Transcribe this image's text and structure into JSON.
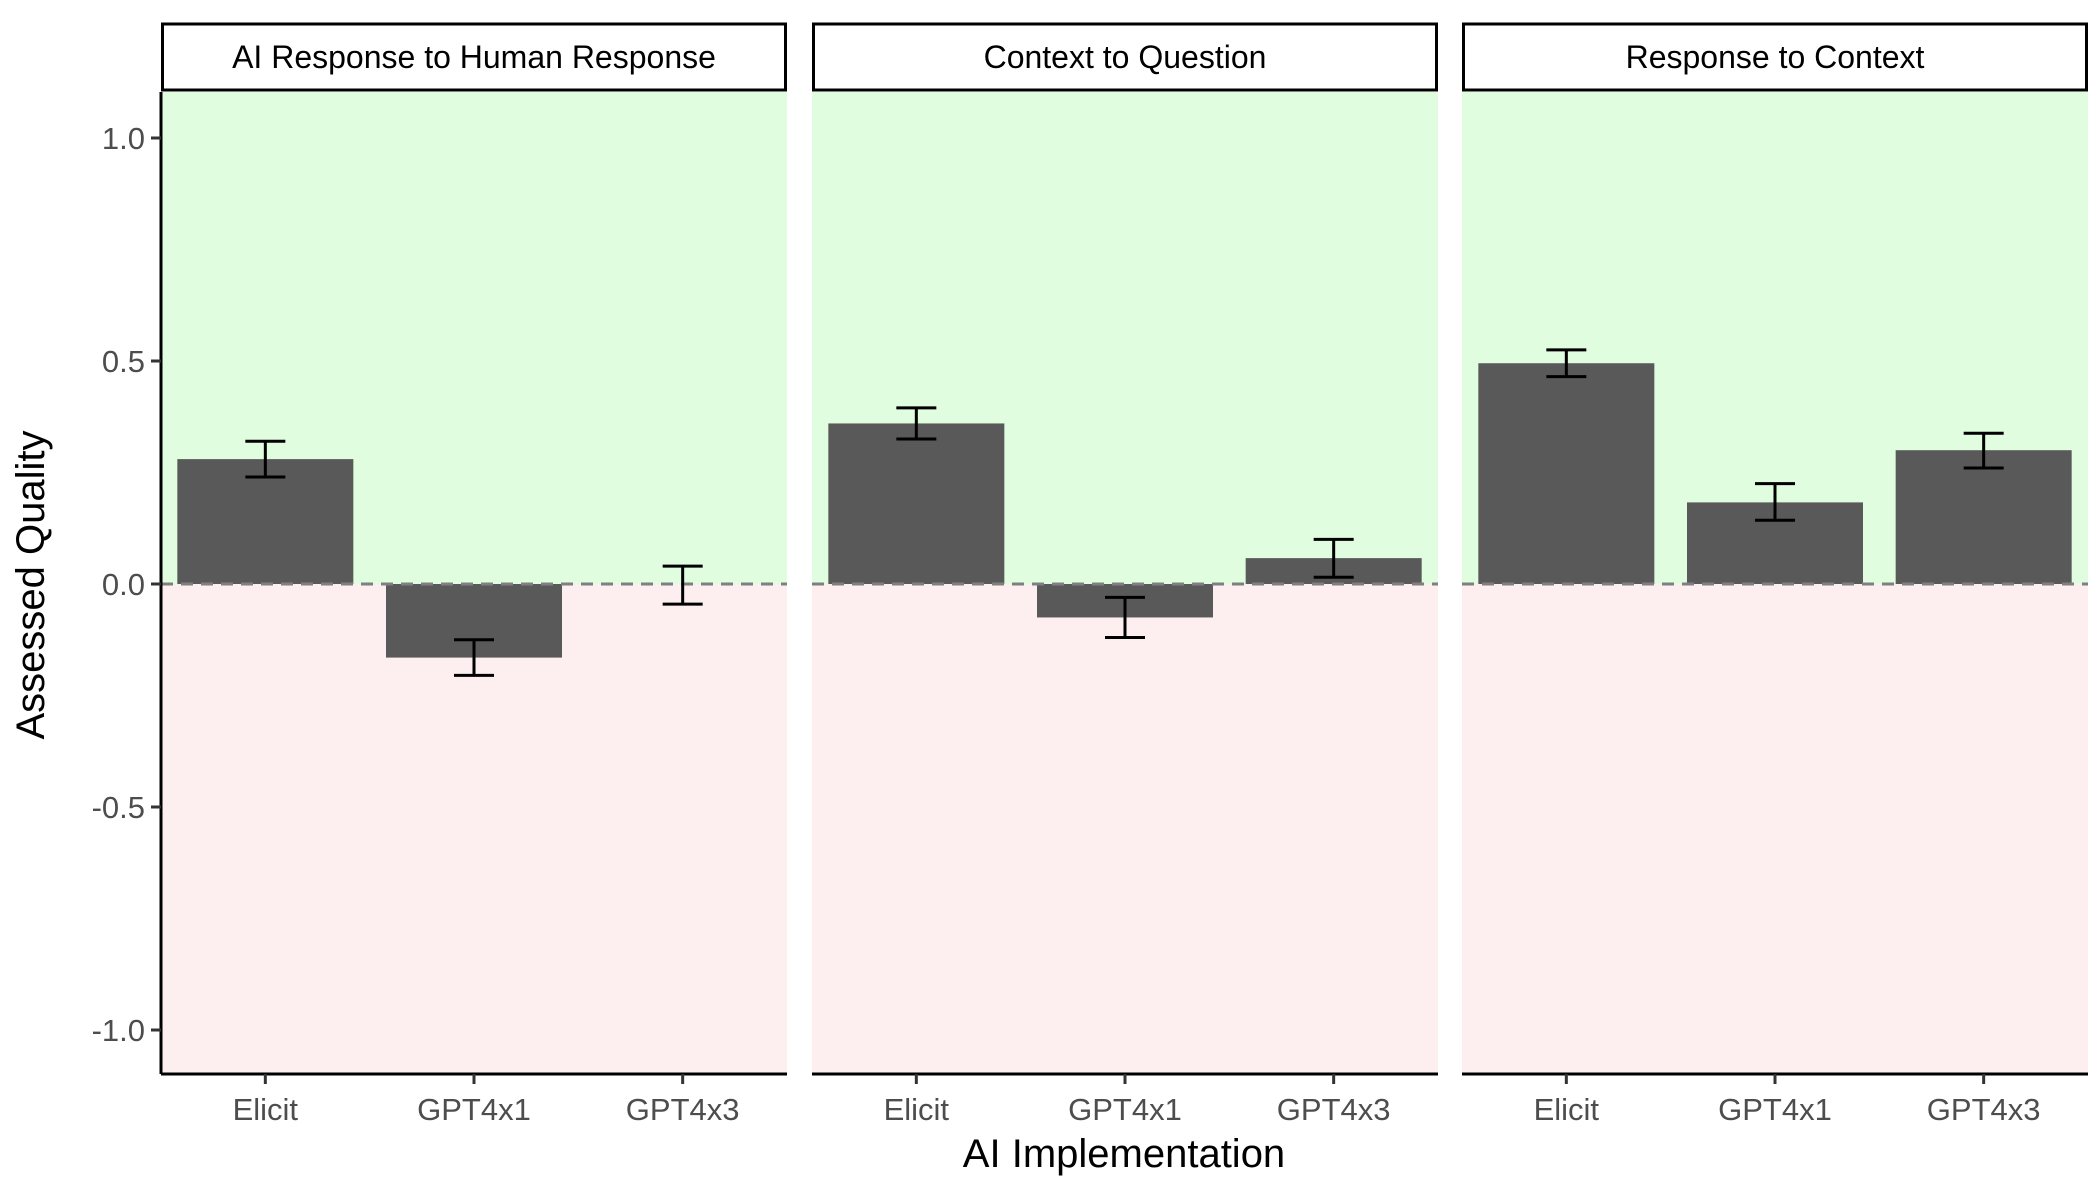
{
  "chart_data": {
    "type": "bar",
    "xlabel": "AI Implementation",
    "ylabel": "Assessed Quality",
    "ylim": [
      -1.1,
      1.1
    ],
    "yticks": [
      1.0,
      0.5,
      0.0,
      -0.5,
      -1.0
    ],
    "ytick_labels": [
      "1.0",
      "0.5",
      "0.0",
      "-0.5",
      "-1.0"
    ],
    "categories": [
      "Elicit",
      "GPT4x1",
      "GPT4x3"
    ],
    "grid": false,
    "reference_line": 0.0,
    "colors": {
      "bar": "#595959",
      "positive_region": "#e0fde0",
      "negative_region": "#fdeef0",
      "reference_line": "#7f7f7f",
      "error_bar": "#000000"
    },
    "panels": [
      {
        "title": "AI Response to Human Response",
        "values": [
          0.28,
          -0.165,
          0.0
        ],
        "err_low": [
          0.24,
          -0.205,
          -0.045
        ],
        "err_high": [
          0.32,
          -0.125,
          0.04
        ]
      },
      {
        "title": "Context to Question",
        "values": [
          0.36,
          -0.075,
          0.058
        ],
        "err_low": [
          0.325,
          -0.12,
          0.015
        ],
        "err_high": [
          0.395,
          -0.03,
          0.1
        ]
      },
      {
        "title": "Response to Context",
        "values": [
          0.495,
          0.183,
          0.3
        ],
        "err_low": [
          0.465,
          0.143,
          0.26
        ],
        "err_high": [
          0.525,
          0.225,
          0.338
        ]
      }
    ]
  }
}
